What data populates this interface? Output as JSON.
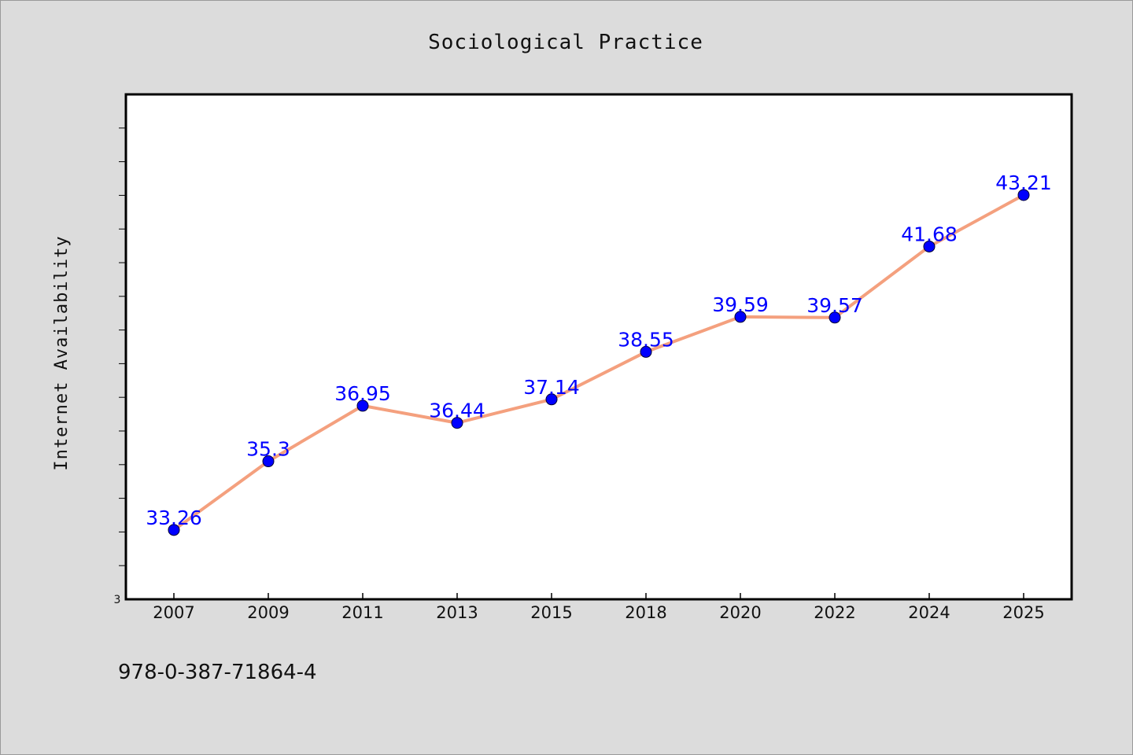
{
  "chart_data": {
    "type": "line",
    "title": "Sociological Practice",
    "xlabel": "",
    "ylabel": "Internet Availability",
    "categories": [
      "2007",
      "2009",
      "2011",
      "2013",
      "2015",
      "2018",
      "2020",
      "2022",
      "2024",
      "2025"
    ],
    "series": [
      {
        "values": [
          33.26,
          35.3,
          36.95,
          36.44,
          37.14,
          38.55,
          39.59,
          39.57,
          41.68,
          43.21
        ],
        "labels": [
          "33.26",
          "35.3",
          "36.95",
          "36.44",
          "37.14",
          "38.55",
          "39.59",
          "39.57",
          "41.68",
          "43.21"
        ],
        "line_color": "#f4a07e",
        "marker_color": "#0000ff"
      }
    ],
    "ylim": [
      31.2,
      46.2
    ],
    "y_min_tick_label": "3",
    "grid": false,
    "legend": "none"
  },
  "footer": {
    "isbn": "978-0-387-71864-4"
  },
  "colors": {
    "background": "#dcdcdc",
    "plot_background": "#ffffff",
    "axis": "#000000"
  }
}
